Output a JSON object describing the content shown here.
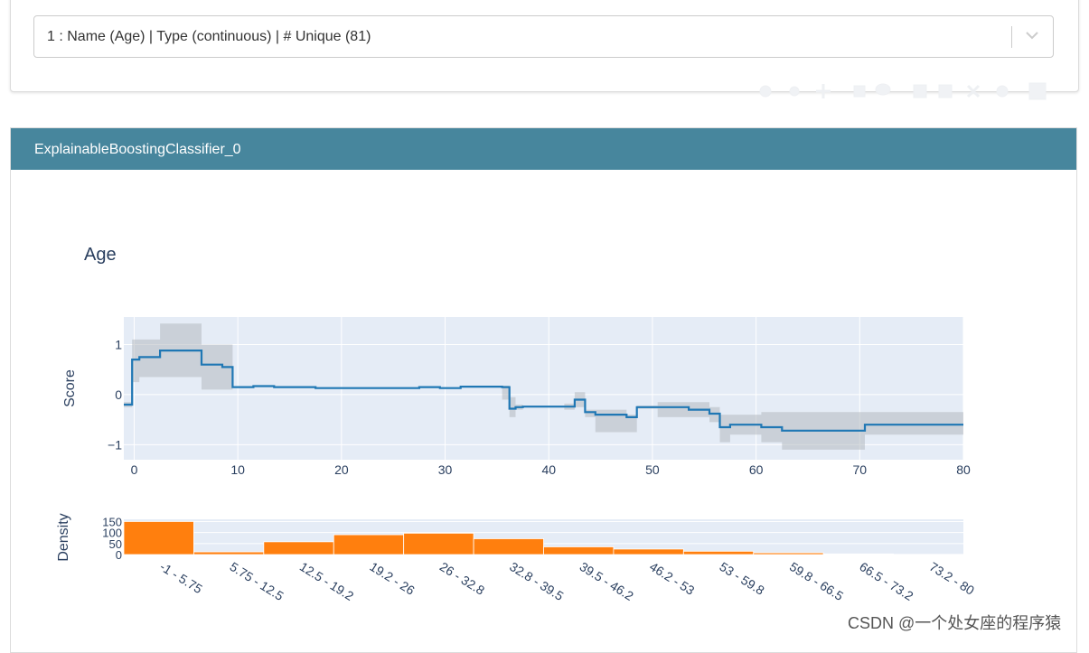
{
  "selector": {
    "value": "1 : Name (Age) | Type (continuous) | # Unique (81)"
  },
  "panel": {
    "title": "ExplainableBoostingClassifier_0"
  },
  "watermark": "CSDN @一个处女座的程序猿",
  "colors": {
    "header": "#47869d",
    "plot_bg": "#e5ecf6",
    "line": "#1f77b4",
    "band": "#b4b9c0",
    "bar": "#ff7f0e"
  },
  "chart_data": [
    {
      "type": "line",
      "title": "Age",
      "xlabel": "",
      "ylabel": "Score",
      "xlim": [
        -1,
        80
      ],
      "ylim": [
        -1.3,
        1.55
      ],
      "xticks": [
        0,
        10,
        20,
        30,
        40,
        50,
        60,
        70,
        80
      ],
      "yticks": [
        1,
        0,
        -1
      ],
      "ytick_labels": [
        "1",
        "0",
        "−1"
      ],
      "grid": true,
      "legend": "none",
      "step": {
        "x": [
          -1,
          -0.2,
          0.5,
          2.5,
          6.5,
          8.5,
          9.5,
          11.5,
          13.5,
          17.5,
          25.5,
          27.5,
          29.5,
          31.5,
          35.5,
          36.2,
          36.8,
          37.5,
          41.5,
          42.5,
          43.5,
          44.5,
          47.5,
          48.5,
          50.5,
          53.5,
          55.5,
          56.5,
          57.5,
          60.5,
          62.5,
          70.5,
          80
        ],
        "y": [
          -0.2,
          0.7,
          0.75,
          0.88,
          0.6,
          0.55,
          0.15,
          0.17,
          0.15,
          0.13,
          0.13,
          0.15,
          0.13,
          0.16,
          0.15,
          -0.28,
          -0.25,
          -0.24,
          -0.24,
          -0.1,
          -0.35,
          -0.4,
          -0.45,
          -0.25,
          -0.25,
          -0.3,
          -0.38,
          -0.65,
          -0.6,
          -0.65,
          -0.72,
          -0.6,
          -0.6
        ]
      },
      "band": {
        "upper": [
          -0.15,
          1.1,
          1.1,
          1.42,
          1.0,
          1.0,
          0.16,
          0.18,
          0.16,
          0.14,
          0.14,
          0.16,
          0.14,
          0.17,
          0.18,
          -0.05,
          -0.2,
          -0.22,
          -0.18,
          0.05,
          -0.3,
          -0.3,
          -0.4,
          -0.22,
          -0.15,
          -0.15,
          -0.25,
          -0.4,
          -0.4,
          -0.35,
          -0.35,
          -0.35,
          -0.35
        ],
        "lower": [
          -0.25,
          0.25,
          0.35,
          0.35,
          0.1,
          0.1,
          0.14,
          0.16,
          0.14,
          0.12,
          0.12,
          0.14,
          0.12,
          0.15,
          -0.1,
          -0.45,
          -0.3,
          -0.26,
          -0.3,
          -0.25,
          -0.45,
          -0.75,
          -0.75,
          -0.28,
          -0.45,
          -0.45,
          -0.55,
          -0.95,
          -0.8,
          -0.95,
          -1.1,
          -0.8,
          -0.8
        ]
      }
    },
    {
      "type": "bar",
      "ylabel": "Density",
      "xlabel": "",
      "ylim": [
        0,
        160
      ],
      "yticks": [
        150,
        100,
        50,
        0
      ],
      "categories": [
        "-1 - 5.75",
        "5.75 - 12.5",
        "12.5 - 19.2",
        "19.2 - 26",
        "26 - 32.8",
        "32.8 - 39.5",
        "39.5 - 46.2",
        "46.2 - 53",
        "53 - 59.8",
        "59.8 - 66.5",
        "66.5 - 73.2",
        "73.2 - 80"
      ],
      "values": [
        150,
        12,
        58,
        90,
        97,
        72,
        35,
        25,
        15,
        8,
        3,
        1
      ]
    }
  ],
  "modebar": {
    "icons": [
      "camera-icon",
      "zoom-icon",
      "pan-icon",
      "box-select-icon",
      "lasso-icon",
      "zoom-in-icon",
      "zoom-out-icon",
      "autoscale-icon",
      "reset-axes-icon",
      "plotly-logo-icon"
    ]
  }
}
